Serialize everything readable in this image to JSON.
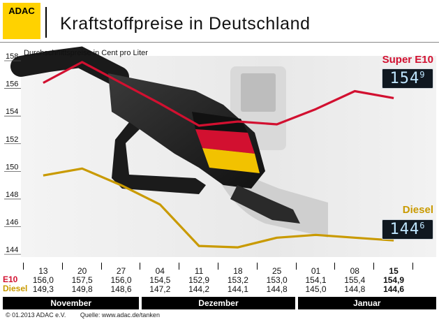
{
  "header": {
    "logo_text": "ADAC",
    "title": "Kraftstoffpreise in Deutschland"
  },
  "chart_data": {
    "type": "line",
    "ylabel": "Durchschnittspreise in Cent pro Liter",
    "ylim": [
      143.5,
      158
    ],
    "yticks": [
      158,
      156,
      154,
      152,
      150,
      148,
      146,
      144
    ],
    "categories": [
      "13",
      "20",
      "27",
      "04",
      "11",
      "18",
      "25",
      "01",
      "08",
      "15"
    ],
    "series": [
      {
        "name": "Super E10",
        "color": "#d21030",
        "values": [
          156.0,
          157.5,
          156.0,
          154.5,
          152.9,
          153.2,
          153.0,
          154.1,
          155.4,
          154.9
        ],
        "value_labels": [
          "156,0",
          "157,5",
          "156,0",
          "154,5",
          "152,9",
          "153,2",
          "153,0",
          "154,1",
          "155,4",
          "154,9"
        ]
      },
      {
        "name": "Diesel",
        "color": "#c99a00",
        "values": [
          149.3,
          149.8,
          148.6,
          147.2,
          144.2,
          144.1,
          144.8,
          145.0,
          144.8,
          144.6
        ],
        "value_labels": [
          "149,3",
          "149,8",
          "148,6",
          "147,2",
          "144,2",
          "144,1",
          "144,8",
          "145,0",
          "144,8",
          "144,6"
        ]
      }
    ],
    "months": [
      "November",
      "Dezember",
      "Januar"
    ],
    "table_row_labels": {
      "e10": "E10",
      "diesel": "Diesel"
    },
    "display": {
      "e10_main": "154",
      "e10_sup": "9",
      "diesel_main": "144",
      "diesel_sup": "6"
    }
  },
  "footer": {
    "copyright": "© 01.2013  ADAC e.V.",
    "source": "Quelle: www.adac.de/tanken"
  }
}
